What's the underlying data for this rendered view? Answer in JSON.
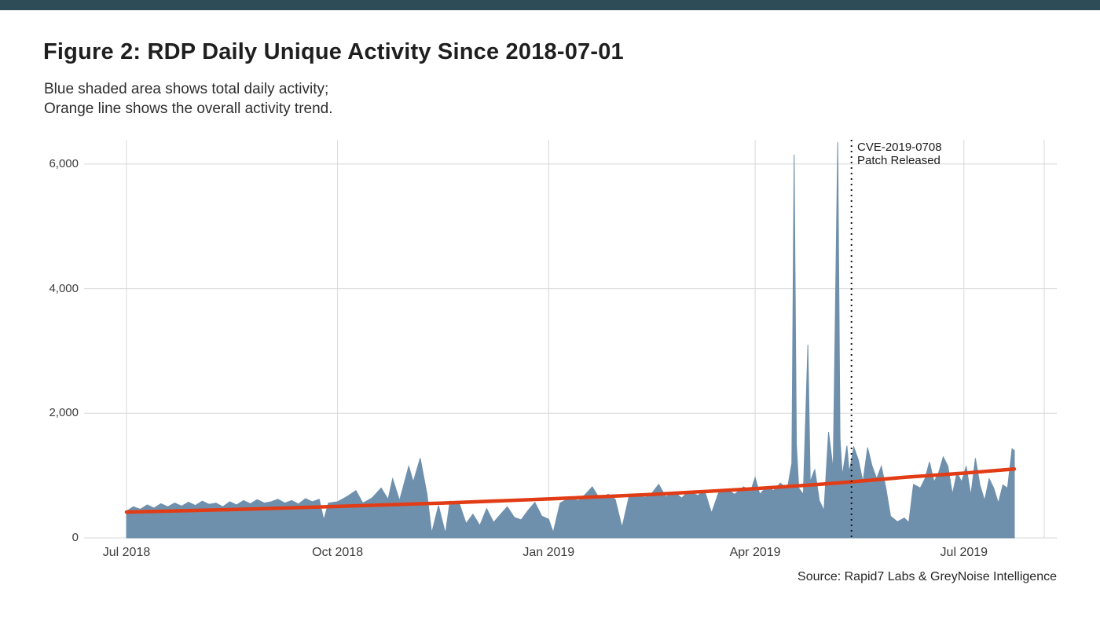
{
  "page": {
    "title": "Figure 2: RDP Daily Unique Activity Since 2018-07-01",
    "subtitle_line1": "Blue shaded area shows total daily activity;",
    "subtitle_line2": "Orange line shows the overall activity trend.",
    "source": "Source: Rapid7 Labs & GreyNoise Intelligence"
  },
  "colors": {
    "top_bar": "#2e4c57",
    "area_fill": "#6f90ac",
    "trend_line": "#e13c15",
    "gridline": "#d8d8d8",
    "marker_line": "#141414",
    "tick_text": "#3c3c3c"
  },
  "chart_data": {
    "type": "area",
    "title": "Figure 2: RDP Daily Unique Activity Since 2018-07-01",
    "xlabel": "",
    "ylabel": "",
    "x_axis": {
      "epoch": "2018-07-01",
      "tick_labels": [
        "Jul 2018",
        "Oct 2018",
        "Jan 2019",
        "Apr 2019",
        "Jul 2019"
      ],
      "tick_days": [
        0,
        92,
        184,
        274,
        365
      ],
      "extra_gridline_day": 400,
      "range_days": [
        0,
        388
      ],
      "grid": true
    },
    "y_axis": {
      "tick_labels": [
        "0",
        "2,000",
        "4,000",
        "6,000"
      ],
      "tick_values": [
        0,
        2000,
        4000,
        6000
      ],
      "range": [
        0,
        6390
      ],
      "grid": true
    },
    "annotation": {
      "line1": "CVE-2019-0708",
      "line2": "Patch Released",
      "day": 316,
      "style": "dotted-vertical-line"
    },
    "series": [
      {
        "name": "Total daily activity",
        "kind": "area",
        "points_day_value": [
          [
            0,
            430
          ],
          [
            3,
            500
          ],
          [
            6,
            460
          ],
          [
            9,
            530
          ],
          [
            12,
            480
          ],
          [
            15,
            550
          ],
          [
            18,
            500
          ],
          [
            21,
            560
          ],
          [
            24,
            510
          ],
          [
            27,
            575
          ],
          [
            30,
            520
          ],
          [
            33,
            590
          ],
          [
            36,
            540
          ],
          [
            39,
            560
          ],
          [
            42,
            500
          ],
          [
            45,
            580
          ],
          [
            48,
            530
          ],
          [
            51,
            600
          ],
          [
            54,
            550
          ],
          [
            57,
            615
          ],
          [
            60,
            560
          ],
          [
            63,
            580
          ],
          [
            66,
            620
          ],
          [
            69,
            560
          ],
          [
            72,
            600
          ],
          [
            75,
            545
          ],
          [
            78,
            630
          ],
          [
            81,
            580
          ],
          [
            84,
            620
          ],
          [
            86,
            290
          ],
          [
            88,
            560
          ],
          [
            92,
            580
          ],
          [
            96,
            660
          ],
          [
            100,
            760
          ],
          [
            103,
            560
          ],
          [
            107,
            640
          ],
          [
            111,
            800
          ],
          [
            114,
            620
          ],
          [
            116,
            950
          ],
          [
            119,
            600
          ],
          [
            123,
            1150
          ],
          [
            125,
            900
          ],
          [
            128,
            1280
          ],
          [
            131,
            700
          ],
          [
            133,
            80
          ],
          [
            136,
            520
          ],
          [
            139,
            70
          ],
          [
            141,
            590
          ],
          [
            145,
            560
          ],
          [
            148,
            230
          ],
          [
            151,
            380
          ],
          [
            154,
            200
          ],
          [
            157,
            470
          ],
          [
            160,
            250
          ],
          [
            164,
            420
          ],
          [
            166,
            500
          ],
          [
            169,
            330
          ],
          [
            172,
            290
          ],
          [
            175,
            440
          ],
          [
            178,
            570
          ],
          [
            181,
            350
          ],
          [
            184,
            300
          ],
          [
            186,
            90
          ],
          [
            189,
            560
          ],
          [
            193,
            640
          ],
          [
            197,
            600
          ],
          [
            200,
            700
          ],
          [
            203,
            820
          ],
          [
            206,
            640
          ],
          [
            210,
            700
          ],
          [
            213,
            620
          ],
          [
            216,
            170
          ],
          [
            219,
            660
          ],
          [
            222,
            700
          ],
          [
            226,
            650
          ],
          [
            229,
            720
          ],
          [
            232,
            860
          ],
          [
            235,
            660
          ],
          [
            239,
            730
          ],
          [
            242,
            640
          ],
          [
            245,
            750
          ],
          [
            249,
            680
          ],
          [
            252,
            760
          ],
          [
            255,
            400
          ],
          [
            258,
            720
          ],
          [
            262,
            780
          ],
          [
            265,
            700
          ],
          [
            269,
            820
          ],
          [
            272,
            740
          ],
          [
            274,
            970
          ],
          [
            276,
            700
          ],
          [
            279,
            820
          ],
          [
            282,
            760
          ],
          [
            285,
            880
          ],
          [
            288,
            780
          ],
          [
            290,
            1200
          ],
          [
            291,
            6150
          ],
          [
            292,
            1500
          ],
          [
            293,
            800
          ],
          [
            295,
            700
          ],
          [
            297,
            3100
          ],
          [
            298,
            900
          ],
          [
            300,
            1100
          ],
          [
            302,
            600
          ],
          [
            304,
            440
          ],
          [
            306,
            1700
          ],
          [
            308,
            1100
          ],
          [
            310,
            6350
          ],
          [
            311,
            1600
          ],
          [
            312,
            1000
          ],
          [
            314,
            1480
          ],
          [
            315,
            1050
          ],
          [
            317,
            1460
          ],
          [
            319,
            1250
          ],
          [
            321,
            900
          ],
          [
            323,
            1450
          ],
          [
            325,
            1150
          ],
          [
            327,
            950
          ],
          [
            329,
            1150
          ],
          [
            331,
            800
          ],
          [
            333,
            350
          ],
          [
            336,
            260
          ],
          [
            339,
            320
          ],
          [
            341,
            250
          ],
          [
            343,
            860
          ],
          [
            346,
            800
          ],
          [
            348,
            950
          ],
          [
            350,
            1220
          ],
          [
            352,
            900
          ],
          [
            354,
            1050
          ],
          [
            356,
            1300
          ],
          [
            358,
            1150
          ],
          [
            360,
            700
          ],
          [
            362,
            1050
          ],
          [
            364,
            900
          ],
          [
            366,
            1150
          ],
          [
            368,
            680
          ],
          [
            370,
            1280
          ],
          [
            372,
            850
          ],
          [
            374,
            600
          ],
          [
            376,
            950
          ],
          [
            378,
            800
          ],
          [
            380,
            560
          ],
          [
            382,
            850
          ],
          [
            384,
            800
          ],
          [
            386,
            1430
          ],
          [
            387,
            1400
          ]
        ]
      },
      {
        "name": "Overall activity trend",
        "kind": "line",
        "points_day_value": [
          [
            0,
            415
          ],
          [
            46,
            455
          ],
          [
            92,
            505
          ],
          [
            138,
            560
          ],
          [
            184,
            625
          ],
          [
            230,
            700
          ],
          [
            274,
            790
          ],
          [
            300,
            855
          ],
          [
            316,
            900
          ],
          [
            340,
            975
          ],
          [
            365,
            1040
          ],
          [
            387,
            1105
          ]
        ]
      }
    ]
  }
}
